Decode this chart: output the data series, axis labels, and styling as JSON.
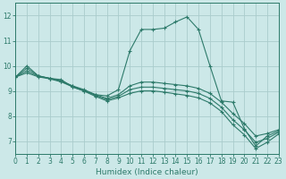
{
  "xlabel": "Humidex (Indice chaleur)",
  "bg_color": "#cce8e8",
  "line_color": "#2d7a6a",
  "grid_color": "#aacccc",
  "curves": [
    {
      "x": [
        0,
        1,
        2,
        3,
        4,
        5,
        6,
        7,
        8,
        9,
        10,
        11,
        12,
        13,
        14,
        15,
        16,
        17,
        18,
        19,
        20,
        21,
        22,
        23
      ],
      "y": [
        9.55,
        10.0,
        9.6,
        9.5,
        9.45,
        9.15,
        9.0,
        8.85,
        8.8,
        9.05,
        10.6,
        11.45,
        11.45,
        11.5,
        11.75,
        11.95,
        11.45,
        10.0,
        8.6,
        8.55,
        7.5,
        6.8,
        7.2,
        7.4
      ]
    },
    {
      "x": [
        0,
        1,
        2,
        3,
        4,
        5,
        6,
        7,
        8,
        9,
        10,
        11,
        12,
        13,
        14,
        15,
        16,
        17,
        18,
        19,
        20,
        21,
        22,
        23
      ],
      "y": [
        9.55,
        9.9,
        9.6,
        9.5,
        9.4,
        9.2,
        9.05,
        8.85,
        8.7,
        8.85,
        9.2,
        9.35,
        9.35,
        9.3,
        9.25,
        9.2,
        9.1,
        8.9,
        8.55,
        8.1,
        7.7,
        7.2,
        7.3,
        7.45
      ]
    },
    {
      "x": [
        0,
        1,
        2,
        3,
        4,
        5,
        6,
        7,
        8,
        9,
        10,
        11,
        12,
        13,
        14,
        15,
        16,
        17,
        18,
        19,
        20,
        21,
        22,
        23
      ],
      "y": [
        9.55,
        9.8,
        9.58,
        9.5,
        9.38,
        9.18,
        9.02,
        8.82,
        8.65,
        8.78,
        9.05,
        9.15,
        9.15,
        9.1,
        9.05,
        9.0,
        8.9,
        8.7,
        8.35,
        7.85,
        7.45,
        6.95,
        7.1,
        7.35
      ]
    },
    {
      "x": [
        0,
        1,
        2,
        3,
        4,
        5,
        6,
        7,
        8,
        9,
        10,
        11,
        12,
        13,
        14,
        15,
        16,
        17,
        18,
        19,
        20,
        21,
        22,
        23
      ],
      "y": [
        9.55,
        9.72,
        9.56,
        9.48,
        9.36,
        9.16,
        8.99,
        8.78,
        8.6,
        8.72,
        8.9,
        9.0,
        9.0,
        8.95,
        8.88,
        8.82,
        8.72,
        8.52,
        8.18,
        7.65,
        7.25,
        6.7,
        6.95,
        7.28
      ]
    }
  ],
  "xlim": [
    0,
    23
  ],
  "ylim": [
    6.5,
    12.5
  ],
  "yticks": [
    7,
    8,
    9,
    10,
    11,
    12
  ],
  "xticks": [
    0,
    1,
    2,
    3,
    4,
    5,
    6,
    7,
    8,
    9,
    10,
    11,
    12,
    13,
    14,
    15,
    16,
    17,
    18,
    19,
    20,
    21,
    22,
    23
  ]
}
